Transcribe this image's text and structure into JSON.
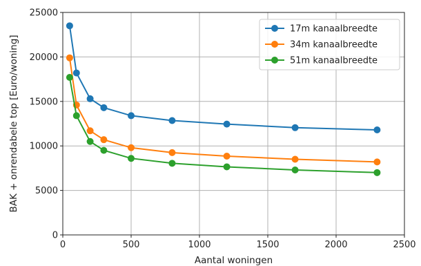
{
  "chart_data": {
    "type": "line",
    "title": "",
    "xlabel": "Aantal woningen",
    "ylabel": "BAK + onrendabele top [Euro/woning]",
    "xlim": [
      0,
      2500
    ],
    "ylim": [
      0,
      25000
    ],
    "xticks": [
      0,
      500,
      1000,
      1500,
      2000,
      2500
    ],
    "yticks": [
      0,
      5000,
      10000,
      15000,
      20000,
      25000
    ],
    "grid": true,
    "legend_position": "top-right",
    "x": [
      50,
      100,
      200,
      300,
      500,
      800,
      1200,
      1700,
      2300
    ],
    "series": [
      {
        "name": "17m kanaalbreedte",
        "color": "#1f77b4",
        "values": [
          23500,
          18200,
          15300,
          14300,
          13400,
          12850,
          12450,
          12050,
          11800
        ]
      },
      {
        "name": "34m kanaalbreedte",
        "color": "#ff7f0e",
        "values": [
          19900,
          14600,
          11700,
          10700,
          9800,
          9250,
          8850,
          8500,
          8200
        ]
      },
      {
        "name": "51m kanaalbreedte",
        "color": "#2ca02c",
        "values": [
          17700,
          13400,
          10500,
          9500,
          8600,
          8050,
          7650,
          7300,
          7000
        ]
      }
    ]
  }
}
